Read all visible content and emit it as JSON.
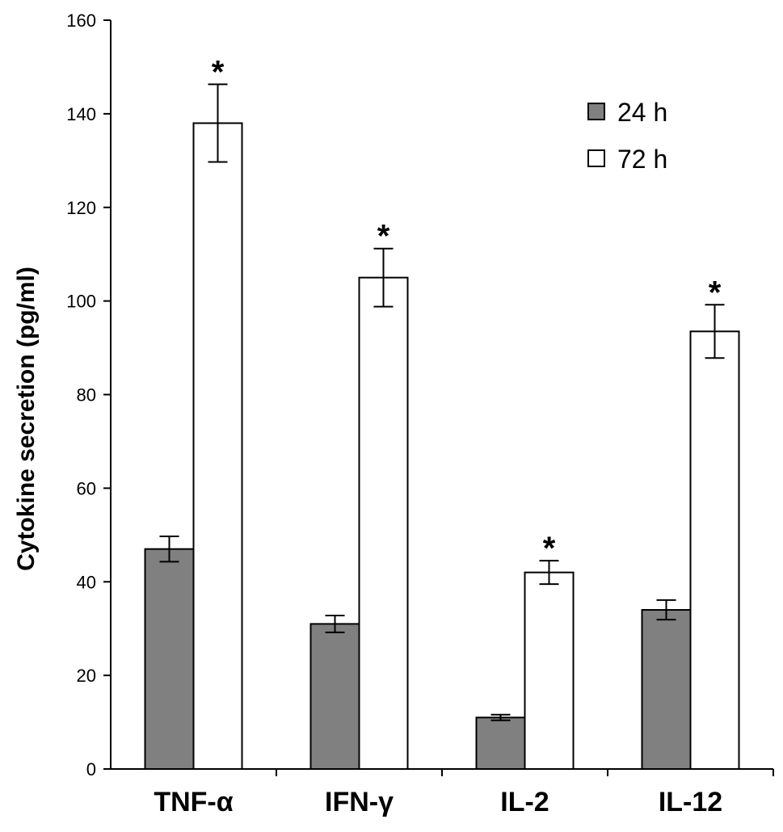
{
  "chart_data": {
    "type": "bar",
    "title": "",
    "xlabel": "",
    "ylabel": "Cytokine secretion (pg/ml)",
    "ylim": [
      0,
      160
    ],
    "yticks": [
      0,
      20,
      40,
      60,
      80,
      100,
      120,
      140,
      160
    ],
    "grid": false,
    "legend_position": "top-right",
    "categories": [
      "TNF-α",
      "IFN-γ",
      "IL-2",
      "IL-12"
    ],
    "series": [
      {
        "name": "24 h",
        "color": "#808080",
        "values": [
          47,
          31,
          11,
          34
        ],
        "errors": [
          2.7,
          1.8,
          0.6,
          2.1
        ],
        "annotations": [
          "",
          "",
          "",
          ""
        ]
      },
      {
        "name": "72 h",
        "color": "#ffffff",
        "values": [
          138,
          105,
          42,
          93.5
        ],
        "errors": [
          8.3,
          6.2,
          2.5,
          5.7
        ],
        "annotations": [
          "*",
          "*",
          "*",
          "*"
        ]
      }
    ]
  }
}
